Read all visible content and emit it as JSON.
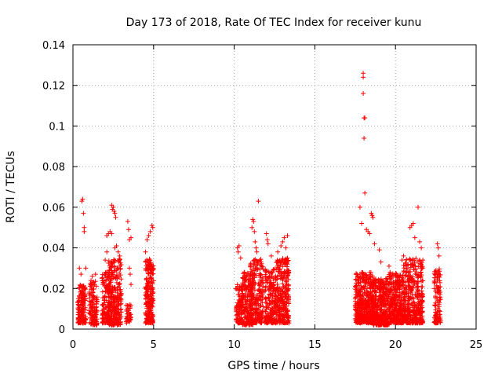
{
  "chart_data": {
    "type": "scatter",
    "title": "Day 173 of 2018, Rate Of TEC Index for receiver kunu",
    "xlabel": "GPS time / hours",
    "ylabel": "ROTI / TECUs",
    "xlim": [
      0,
      25
    ],
    "ylim": [
      0,
      0.14
    ],
    "xticks": [
      0,
      5,
      10,
      15,
      20,
      25
    ],
    "xtick_labels": [
      "0",
      "5",
      "10",
      "15",
      "20",
      "25"
    ],
    "yticks": [
      0,
      0.02,
      0.04,
      0.06,
      0.08,
      0.1,
      0.12,
      0.14
    ],
    "ytick_labels": [
      "0",
      "0.02",
      "0.04",
      "0.06",
      "0.08",
      "0.1",
      "0.12",
      "0.14"
    ],
    "grid": true,
    "marker": "+",
    "color": "#ff0000",
    "series": [
      {
        "name": "ROTI",
        "clusters": [
          {
            "x": [
              0.3,
              0.8
            ],
            "ylow": 0.003,
            "yhigh": 0.022,
            "n": 160
          },
          {
            "x": [
              1.0,
              1.5
            ],
            "ylow": 0.002,
            "yhigh": 0.024,
            "n": 130
          },
          {
            "x": [
              1.8,
              2.3
            ],
            "ylow": 0.003,
            "yhigh": 0.028,
            "n": 120
          },
          {
            "x": [
              2.2,
              3.0
            ],
            "ylow": 0.002,
            "yhigh": 0.035,
            "n": 280
          },
          {
            "x": [
              3.3,
              3.6
            ],
            "ylow": 0.003,
            "yhigh": 0.012,
            "n": 40
          },
          {
            "x": [
              4.5,
              5.0
            ],
            "ylow": 0.003,
            "yhigh": 0.035,
            "n": 220
          },
          {
            "x": [
              10.1,
              10.5
            ],
            "ylow": 0.003,
            "yhigh": 0.022,
            "n": 90
          },
          {
            "x": [
              10.5,
              11.2
            ],
            "ylow": 0.002,
            "yhigh": 0.028,
            "n": 200
          },
          {
            "x": [
              11.0,
              11.8
            ],
            "ylow": 0.003,
            "yhigh": 0.035,
            "n": 220
          },
          {
            "x": [
              11.9,
              12.6
            ],
            "ylow": 0.003,
            "yhigh": 0.03,
            "n": 200
          },
          {
            "x": [
              12.6,
              13.4
            ],
            "ylow": 0.003,
            "yhigh": 0.035,
            "n": 260
          },
          {
            "x": [
              17.5,
              18.6
            ],
            "ylow": 0.003,
            "yhigh": 0.028,
            "n": 420
          },
          {
            "x": [
              18.6,
              19.6
            ],
            "ylow": 0.002,
            "yhigh": 0.025,
            "n": 360
          },
          {
            "x": [
              19.6,
              20.5
            ],
            "ylow": 0.003,
            "yhigh": 0.028,
            "n": 320
          },
          {
            "x": [
              20.5,
              21.7
            ],
            "ylow": 0.003,
            "yhigh": 0.035,
            "n": 380
          },
          {
            "x": [
              22.4,
              22.8
            ],
            "ylow": 0.003,
            "yhigh": 0.03,
            "n": 110
          }
        ],
        "outliers": [
          [
            0.4,
            0.03
          ],
          [
            0.5,
            0.027
          ],
          [
            0.55,
            0.063
          ],
          [
            0.6,
            0.064
          ],
          [
            0.65,
            0.057
          ],
          [
            0.7,
            0.05
          ],
          [
            0.7,
            0.048
          ],
          [
            0.8,
            0.03
          ],
          [
            1.2,
            0.026
          ],
          [
            1.4,
            0.027
          ],
          [
            2.0,
            0.034
          ],
          [
            2.1,
            0.038
          ],
          [
            2.1,
            0.046
          ],
          [
            2.2,
            0.047
          ],
          [
            2.3,
            0.048
          ],
          [
            2.4,
            0.061
          ],
          [
            2.45,
            0.059
          ],
          [
            2.5,
            0.06
          ],
          [
            2.55,
            0.058
          ],
          [
            2.6,
            0.057
          ],
          [
            2.65,
            0.055
          ],
          [
            2.4,
            0.047
          ],
          [
            2.6,
            0.04
          ],
          [
            2.7,
            0.041
          ],
          [
            2.8,
            0.038
          ],
          [
            2.9,
            0.036
          ],
          [
            3.4,
            0.053
          ],
          [
            3.45,
            0.049
          ],
          [
            3.5,
            0.044
          ],
          [
            3.6,
            0.045
          ],
          [
            3.5,
            0.03
          ],
          [
            3.55,
            0.027
          ],
          [
            3.6,
            0.022
          ],
          [
            4.5,
            0.038
          ],
          [
            4.6,
            0.044
          ],
          [
            4.7,
            0.046
          ],
          [
            4.8,
            0.048
          ],
          [
            4.9,
            0.051
          ],
          [
            4.95,
            0.05
          ],
          [
            10.2,
            0.04
          ],
          [
            10.25,
            0.038
          ],
          [
            10.3,
            0.041
          ],
          [
            10.4,
            0.035
          ],
          [
            11.1,
            0.05
          ],
          [
            11.15,
            0.054
          ],
          [
            11.2,
            0.053
          ],
          [
            11.25,
            0.048
          ],
          [
            11.3,
            0.043
          ],
          [
            11.35,
            0.04
          ],
          [
            11.4,
            0.038
          ],
          [
            11.5,
            0.063
          ],
          [
            12.0,
            0.047
          ],
          [
            12.05,
            0.044
          ],
          [
            12.1,
            0.042
          ],
          [
            12.3,
            0.036
          ],
          [
            12.9,
            0.041
          ],
          [
            13.0,
            0.043
          ],
          [
            13.1,
            0.045
          ],
          [
            13.3,
            0.046
          ],
          [
            13.2,
            0.04
          ],
          [
            12.7,
            0.038
          ],
          [
            17.8,
            0.06
          ],
          [
            17.9,
            0.052
          ],
          [
            18.0,
            0.126
          ],
          [
            18.0,
            0.124
          ],
          [
            18.0,
            0.116
          ],
          [
            18.05,
            0.104
          ],
          [
            18.1,
            0.104
          ],
          [
            18.05,
            0.094
          ],
          [
            18.1,
            0.067
          ],
          [
            18.2,
            0.049
          ],
          [
            18.3,
            0.048
          ],
          [
            18.5,
            0.057
          ],
          [
            18.55,
            0.056
          ],
          [
            18.6,
            0.055
          ],
          [
            18.4,
            0.047
          ],
          [
            18.7,
            0.042
          ],
          [
            19.0,
            0.039
          ],
          [
            19.1,
            0.033
          ],
          [
            19.6,
            0.031
          ],
          [
            20.4,
            0.034
          ],
          [
            20.5,
            0.036
          ],
          [
            20.9,
            0.05
          ],
          [
            21.0,
            0.051
          ],
          [
            21.1,
            0.052
          ],
          [
            21.2,
            0.045
          ],
          [
            21.4,
            0.06
          ],
          [
            21.5,
            0.043
          ],
          [
            21.6,
            0.04
          ],
          [
            22.6,
            0.042
          ],
          [
            22.65,
            0.04
          ],
          [
            22.7,
            0.036
          ]
        ]
      }
    ]
  }
}
